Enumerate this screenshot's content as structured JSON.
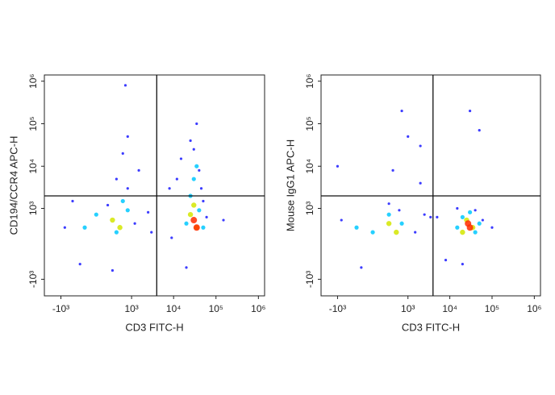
{
  "chart_data": [
    {
      "type": "scatter",
      "scale": "biexponential",
      "x_label": "CD3 FITC-H",
      "y_label": "CD194/CCR4 APC-H",
      "xlim": [
        -2500,
        1400000
      ],
      "ylim": [
        -2500,
        1400000
      ],
      "xticks": [
        {
          "value": -1000,
          "label": "-10³"
        },
        {
          "value": 1000,
          "label": "10³"
        },
        {
          "value": 10000,
          "label": "10⁴"
        },
        {
          "value": 100000,
          "label": "10⁵"
        },
        {
          "value": 1000000,
          "label": "10⁶"
        }
      ],
      "yticks": [
        {
          "value": -1000,
          "label": "-10³"
        },
        {
          "value": 1000,
          "label": "10³"
        },
        {
          "value": 10000,
          "label": "10⁴"
        },
        {
          "value": 100000,
          "label": "10⁵"
        },
        {
          "value": 1000000,
          "label": "10⁶"
        }
      ],
      "gate": {
        "x": 4000,
        "y": 2000
      },
      "series": [
        {
          "color": "#1a1aff",
          "x": [
            -800,
            -300,
            200,
            800,
            1500,
            2500,
            -500,
            600,
            300,
            1200,
            400,
            8000,
            15000,
            25000,
            40000,
            60000,
            20000,
            35000,
            50000,
            12000,
            30000,
            45000,
            3000,
            150000,
            9000,
            700,
            800
          ],
          "y": [
            300,
            -400,
            1200,
            3000,
            8000,
            800,
            1500,
            20000,
            -600,
            400,
            5000,
            3000,
            15000,
            40000,
            8000,
            600,
            -500,
            100000,
            1500,
            5000,
            25000,
            3000,
            200,
            500,
            100,
            800000,
            50000
          ]
        },
        {
          "color": "#00c8ff",
          "x": [
            0,
            400,
            800,
            -200,
            600,
            20000,
            40000,
            30000,
            25000,
            50000,
            35000
          ],
          "y": [
            700,
            200,
            900,
            300,
            1500,
            400,
            900,
            5000,
            2000,
            300,
            10000
          ]
        },
        {
          "color": "#d4e600",
          "x": [
            300,
            500,
            25000,
            35000,
            30000
          ],
          "y": [
            500,
            300,
            700,
            300,
            1200
          ]
        },
        {
          "color": "#ff2a00",
          "x": [
            30000,
            35000
          ],
          "y": [
            500,
            300
          ]
        }
      ]
    },
    {
      "type": "scatter",
      "scale": "biexponential",
      "x_label": "CD3 FITC-H",
      "y_label": "Mouse IgG1 APC-H",
      "xlim": [
        -2500,
        1400000
      ],
      "ylim": [
        -2500,
        1400000
      ],
      "xticks": [
        {
          "value": -1000,
          "label": "-10³"
        },
        {
          "value": 1000,
          "label": "10³"
        },
        {
          "value": 10000,
          "label": "10⁴"
        },
        {
          "value": 100000,
          "label": "10⁵"
        },
        {
          "value": 1000000,
          "label": "10⁶"
        }
      ],
      "yticks": [
        {
          "value": -1000,
          "label": "-10³"
        },
        {
          "value": 1000,
          "label": "10³"
        },
        {
          "value": 10000,
          "label": "10⁴"
        },
        {
          "value": 100000,
          "label": "10⁵"
        },
        {
          "value": 1000000,
          "label": "10⁶"
        }
      ],
      "gate": {
        "x": 4000,
        "y": 2000
      },
      "series": [
        {
          "color": "#1a1aff",
          "x": [
            -800,
            -200,
            600,
            1500,
            2500,
            300,
            8000,
            15000,
            20000,
            40000,
            60000,
            100000,
            5000,
            700,
            1000,
            30000,
            400,
            2000,
            -1000,
            50000,
            2000,
            3500
          ],
          "y": [
            500,
            -500,
            900,
            200,
            700,
            1300,
            -300,
            1000,
            -400,
            900,
            500,
            300,
            600,
            200000,
            50000,
            200000,
            8000,
            30000,
            10000,
            70000,
            4000,
            600
          ]
        },
        {
          "color": "#00c8ff",
          "x": [
            0,
            300,
            700,
            -300,
            15000,
            30000,
            40000,
            20000,
            50000
          ],
          "y": [
            200,
            700,
            400,
            300,
            300,
            800,
            200,
            600,
            400
          ]
        },
        {
          "color": "#d4e600",
          "x": [
            300,
            500,
            25000,
            35000,
            20000
          ],
          "y": [
            400,
            200,
            500,
            300,
            200
          ]
        },
        {
          "color": "#ff2a00",
          "x": [
            27000,
            30000
          ],
          "y": [
            400,
            300
          ]
        }
      ]
    }
  ]
}
